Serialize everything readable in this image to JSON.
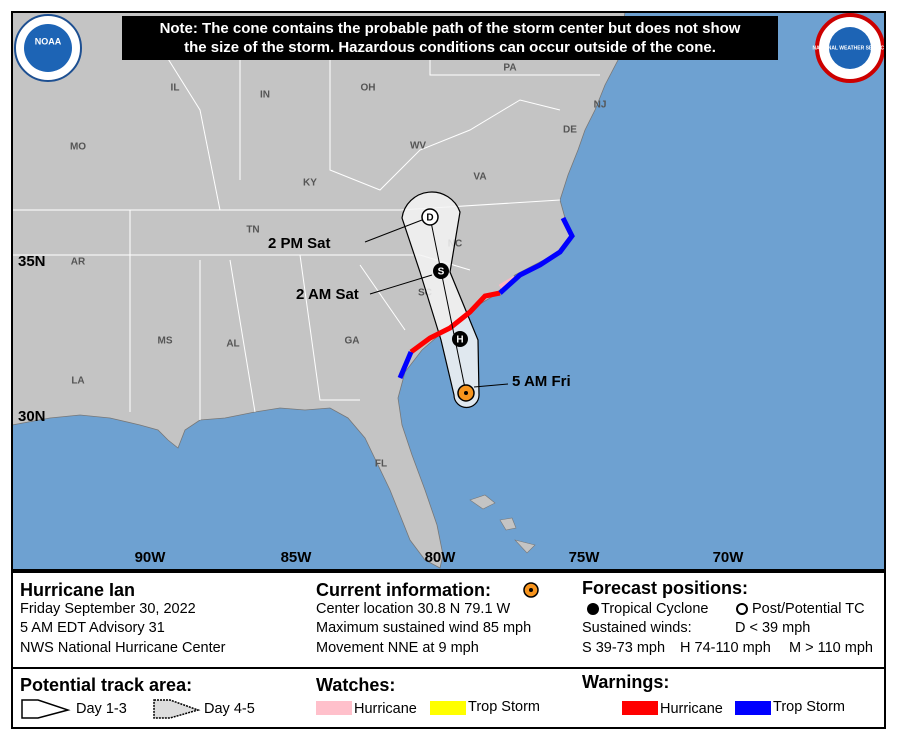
{
  "note": [
    "Note: The cone contains the probable path of the storm center but does not show",
    "the size of the storm. Hazardous conditions can occur outside of the cone."
  ],
  "logos": {
    "noaa": "NOAA",
    "nws": "NATIONAL WEATHER SERVICE"
  },
  "map": {
    "states": [
      "IL",
      "IN",
      "OH",
      "PA",
      "NJ",
      "DE",
      "MO",
      "KY",
      "WV",
      "VA",
      "TN",
      "NC",
      "AR",
      "SC",
      "MS",
      "AL",
      "GA",
      "LA",
      "FL"
    ],
    "latitudes": [
      "35N",
      "30N"
    ],
    "longitudes": [
      "90W",
      "85W",
      "80W",
      "75W",
      "70W"
    ],
    "current_label": "5 AM Fri",
    "forecast_points": [
      {
        "letter": "H"
      },
      {
        "letter": "S",
        "label": "2 AM Sat"
      },
      {
        "letter": "D",
        "label": "2 PM Sat"
      }
    ]
  },
  "storm": {
    "name": "Hurricane Ian",
    "date": "Friday September 30, 2022",
    "advisory": "5 AM EDT Advisory 31",
    "center": "NWS National Hurricane Center"
  },
  "current": {
    "title": "Current information:",
    "location": "Center location 30.8 N 79.1 W",
    "wind": "Maximum sustained wind 85 mph",
    "movement": "Movement NNE at 9 mph"
  },
  "forecast": {
    "title": "Forecast positions:",
    "tropical": "Tropical Cyclone",
    "post": "Post/Potential TC",
    "winds": "Sustained winds:",
    "d": "D < 39 mph",
    "s": "S 39-73 mph",
    "h": "H 74-110 mph",
    "m": "M > 110 mph"
  },
  "track_area": {
    "title": "Potential track area:",
    "day13": "Day 1-3",
    "day45": "Day 4-5"
  },
  "watches": {
    "title": "Watches:",
    "hurricane": "Hurricane",
    "storm": "Trop Storm"
  },
  "warnings": {
    "title": "Warnings:",
    "hurricane": "Hurricane",
    "storm": "Trop Storm"
  }
}
